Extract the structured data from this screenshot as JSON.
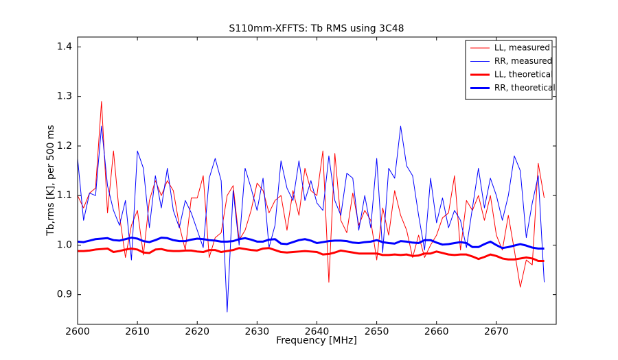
{
  "chart_data": {
    "type": "line",
    "title": "S110mm-XFFTS: Tb RMS using 3C48",
    "xlabel": "Frequency [MHz]",
    "ylabel": "Tb,rms [K], per 500 ms",
    "x": [
      2600,
      2601,
      2602,
      2603,
      2604,
      2605,
      2606,
      2607,
      2608,
      2609,
      2610,
      2611,
      2612,
      2613,
      2614,
      2615,
      2616,
      2617,
      2618,
      2619,
      2620,
      2621,
      2622,
      2623,
      2624,
      2625,
      2626,
      2627,
      2628,
      2629,
      2630,
      2631,
      2632,
      2633,
      2634,
      2635,
      2636,
      2637,
      2638,
      2639,
      2640,
      2641,
      2642,
      2643,
      2644,
      2645,
      2646,
      2647,
      2648,
      2649,
      2650,
      2651,
      2652,
      2653,
      2654,
      2655,
      2656,
      2657,
      2658,
      2659,
      2660,
      2661,
      2662,
      2663,
      2664,
      2665,
      2666,
      2667,
      2668,
      2669,
      2670,
      2671,
      2672,
      2673,
      2674,
      2675,
      2676,
      2677,
      2678
    ],
    "series": [
      {
        "name": "LL, measured",
        "color": "#ff0000",
        "linewidth": 1,
        "values": [
          1.1,
          1.075,
          1.105,
          1.115,
          1.29,
          1.065,
          1.19,
          1.06,
          0.975,
          1.04,
          1.07,
          0.98,
          1.09,
          1.13,
          1.1,
          1.13,
          1.11,
          1.04,
          0.99,
          1.095,
          1.095,
          1.14,
          0.975,
          1.015,
          1.025,
          1.1,
          1.12,
          1.01,
          1.03,
          1.07,
          1.125,
          1.11,
          1.065,
          1.09,
          1.1,
          1.03,
          1.11,
          1.06,
          1.155,
          1.11,
          1.1,
          1.19,
          0.925,
          1.185,
          1.05,
          1.025,
          1.105,
          1.04,
          1.07,
          1.05,
          0.97,
          1.075,
          1.02,
          1.11,
          1.06,
          1.03,
          0.975,
          1.02,
          0.975,
          1.0,
          1.02,
          1.055,
          1.065,
          1.14,
          0.99,
          1.09,
          1.07,
          1.1,
          1.05,
          1.1,
          1.02,
          0.99,
          1.06,
          0.99,
          0.915,
          0.97,
          0.96,
          1.165,
          1.095
        ]
      },
      {
        "name": "RR, measured",
        "color": "#0000ff",
        "linewidth": 1,
        "values": [
          1.175,
          1.05,
          1.105,
          1.1,
          1.24,
          1.12,
          1.07,
          1.04,
          1.09,
          0.97,
          1.19,
          1.155,
          1.035,
          1.14,
          1.075,
          1.155,
          1.07,
          1.035,
          1.09,
          1.065,
          1.03,
          0.995,
          1.135,
          1.175,
          1.13,
          0.865,
          1.11,
          1.0,
          1.155,
          1.115,
          1.07,
          1.135,
          0.995,
          1.04,
          1.17,
          1.115,
          1.09,
          1.17,
          1.09,
          1.13,
          1.085,
          1.07,
          1.18,
          1.09,
          1.06,
          1.145,
          1.135,
          1.03,
          1.1,
          1.035,
          1.175,
          0.985,
          1.155,
          1.135,
          1.24,
          1.16,
          1.14,
          1.06,
          0.99,
          1.135,
          1.045,
          1.095,
          1.035,
          1.07,
          1.05,
          0.995,
          1.075,
          1.155,
          1.075,
          1.135,
          1.1,
          1.05,
          1.1,
          1.18,
          1.15,
          1.015,
          1.085,
          1.14,
          0.925
        ]
      },
      {
        "name": "LL, theoretical",
        "color": "#ff0000",
        "linewidth": 3,
        "values": [
          0.988,
          0.988,
          0.989,
          0.991,
          0.992,
          0.993,
          0.986,
          0.988,
          0.991,
          0.993,
          0.991,
          0.985,
          0.984,
          0.991,
          0.992,
          0.989,
          0.988,
          0.988,
          0.989,
          0.989,
          0.987,
          0.986,
          0.99,
          0.99,
          0.986,
          0.988,
          0.99,
          0.994,
          0.992,
          0.99,
          0.989,
          0.993,
          0.994,
          0.99,
          0.986,
          0.985,
          0.986,
          0.987,
          0.988,
          0.987,
          0.986,
          0.981,
          0.982,
          0.985,
          0.989,
          0.987,
          0.985,
          0.983,
          0.983,
          0.983,
          0.983,
          0.98,
          0.98,
          0.981,
          0.98,
          0.981,
          0.978,
          0.979,
          0.983,
          0.983,
          0.987,
          0.984,
          0.981,
          0.98,
          0.981,
          0.981,
          0.977,
          0.972,
          0.976,
          0.981,
          0.978,
          0.973,
          0.971,
          0.971,
          0.973,
          0.975,
          0.973,
          0.968,
          0.968
        ]
      },
      {
        "name": "RR, theoretical",
        "color": "#0000ff",
        "linewidth": 3,
        "values": [
          1.007,
          1.006,
          1.009,
          1.012,
          1.013,
          1.014,
          1.01,
          1.009,
          1.012,
          1.015,
          1.013,
          1.008,
          1.006,
          1.01,
          1.015,
          1.014,
          1.01,
          1.008,
          1.008,
          1.011,
          1.013,
          1.012,
          1.01,
          1.009,
          1.007,
          1.007,
          1.008,
          1.012,
          1.014,
          1.011,
          1.007,
          1.007,
          1.011,
          1.012,
          1.003,
          1.002,
          1.006,
          1.01,
          1.012,
          1.009,
          1.004,
          1.006,
          1.008,
          1.009,
          1.009,
          1.008,
          1.005,
          1.004,
          1.006,
          1.007,
          1.01,
          1.006,
          1.004,
          1.003,
          1.008,
          1.007,
          1.005,
          1.004,
          1.01,
          1.01,
          1.005,
          1.001,
          1.002,
          1.004,
          1.006,
          1.004,
          0.996,
          0.996,
          1.002,
          1.007,
          1.0,
          0.994,
          0.996,
          0.999,
          1.002,
          0.999,
          0.995,
          0.993,
          0.993
        ]
      }
    ],
    "xlim": [
      2600,
      2680
    ],
    "xticks": [
      2600,
      2610,
      2620,
      2630,
      2640,
      2650,
      2660,
      2670
    ],
    "ylim": [
      0.84,
      1.42
    ],
    "yticks": [
      0.9,
      {
        "value": 1,
        "label": "1.0"
      },
      1.1,
      1.2,
      1.3,
      1.4
    ],
    "grid": false,
    "legend": "upper right"
  }
}
